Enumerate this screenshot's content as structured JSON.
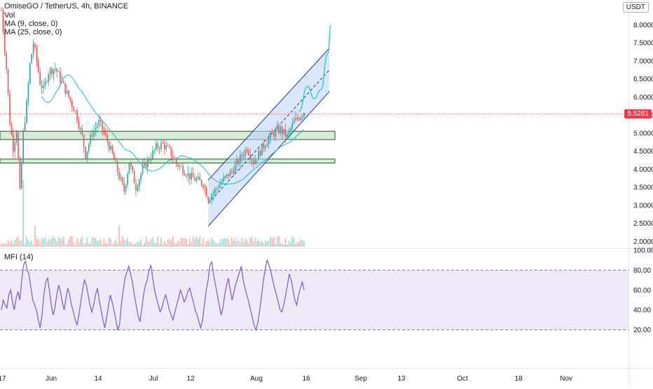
{
  "header": {
    "symbol_line": "OmiseGO / TetherUS, 4h, BINANCE",
    "vol_label": "Vol",
    "ma1_label": "MA (9, close, 0)",
    "ma2_label": "MA (25, close, 0)",
    "currency": "USDT"
  },
  "mfi_label": "MFI (14)",
  "last_price_label": "5.5261",
  "colors": {
    "up": "#26a69a",
    "down": "#ef5350",
    "ma": "#21b5c9",
    "channel_fill": "#bbd3f5",
    "channel_line": "#1e3a8a",
    "zone_fill": "#c8e6c9",
    "zone_line": "#1b5e20",
    "mfi_line": "#7e57c2",
    "mfi_band": "#ede7f6",
    "projection": "#21c7d9",
    "last_price": "#f23645"
  },
  "chart_data": [
    {
      "type": "candlestick",
      "price_axis": {
        "min": 1.85,
        "max": 8.3,
        "ticks": [
          "2.0000",
          "2.5000",
          "3.0000",
          "3.5000",
          "4.0000",
          "4.5000",
          "5.0000",
          "5.5000",
          "6.0000",
          "6.5000",
          "7.0000",
          "7.5000",
          "8.0000"
        ]
      },
      "time_axis_labels": [
        "17",
        "Jun",
        "14",
        "Jul",
        "12",
        "Aug",
        "16",
        "Sep",
        "13",
        "Oct",
        "18",
        "Nov"
      ],
      "last_price": 5.5261,
      "price_path": [
        [
          0,
          8.4
        ],
        [
          3,
          6.8
        ],
        [
          5,
          5.3
        ],
        [
          7,
          4.6
        ],
        [
          9,
          5.1
        ],
        [
          11,
          3.35
        ],
        [
          13,
          5.0
        ],
        [
          15,
          5.8
        ],
        [
          17,
          6.9
        ],
        [
          19,
          7.5
        ],
        [
          21,
          7.0
        ],
        [
          23,
          6.4
        ],
        [
          25,
          6.2
        ],
        [
          28,
          6.7
        ],
        [
          32,
          6.8
        ],
        [
          36,
          6.4
        ],
        [
          40,
          6.0
        ],
        [
          44,
          5.6
        ],
        [
          48,
          4.9
        ],
        [
          50,
          4.4
        ],
        [
          54,
          5.0
        ],
        [
          58,
          5.3
        ],
        [
          62,
          4.9
        ],
        [
          66,
          4.4
        ],
        [
          70,
          3.8
        ],
        [
          73,
          3.4
        ],
        [
          76,
          4.2
        ],
        [
          80,
          3.5
        ],
        [
          84,
          4.0
        ],
        [
          88,
          4.3
        ],
        [
          92,
          4.6
        ],
        [
          96,
          4.7
        ],
        [
          100,
          4.5
        ],
        [
          104,
          4.15
        ],
        [
          108,
          4.0
        ],
        [
          112,
          3.8
        ],
        [
          116,
          3.7
        ],
        [
          120,
          3.6
        ],
        [
          123,
          3.2
        ],
        [
          126,
          3.35
        ],
        [
          130,
          3.6
        ],
        [
          134,
          3.8
        ],
        [
          138,
          4.0
        ],
        [
          142,
          4.3
        ],
        [
          146,
          4.6
        ],
        [
          150,
          4.2
        ],
        [
          154,
          4.5
        ],
        [
          158,
          4.8
        ],
        [
          162,
          5.0
        ],
        [
          166,
          5.1
        ],
        [
          170,
          4.9
        ],
        [
          174,
          5.3
        ],
        [
          177,
          5.45
        ],
        [
          180,
          5.6
        ]
      ],
      "volume": {
        "spike_index": 13
      },
      "moving_average": {
        "periods": 25
      },
      "support_zones": [
        {
          "low": 4.82,
          "high": 5.05
        },
        {
          "low": 4.17,
          "high": 4.28
        }
      ],
      "channel": {
        "upper": {
          "from": [
            123,
            3.7
          ],
          "to": [
            195,
            7.35
          ]
        },
        "lower": {
          "from": [
            123,
            2.42
          ],
          "to": [
            195,
            6.15
          ]
        },
        "mid": {
          "from": [
            123,
            3.05
          ],
          "to": [
            195,
            6.75
          ]
        }
      },
      "projection": [
        [
          177,
          5.6
        ],
        [
          182,
          6.3
        ],
        [
          186,
          5.95
        ],
        [
          190,
          6.2
        ],
        [
          194,
          7.2
        ],
        [
          196,
          8.0
        ]
      ]
    },
    {
      "type": "line",
      "name": "MFI (14)",
      "y_axis": {
        "min": 0,
        "max": 100,
        "ticks": [
          "20.00",
          "40.00",
          "60.00",
          "80.00",
          "100.00"
        ]
      },
      "band": {
        "low": 20,
        "high": 80
      },
      "values": [
        40,
        50,
        45,
        42,
        55,
        60,
        48,
        40,
        52,
        58,
        50,
        70,
        85,
        89,
        80,
        75,
        62,
        50,
        45,
        40,
        30,
        22,
        35,
        55,
        68,
        72,
        60,
        45,
        35,
        42,
        55,
        65,
        58,
        48,
        40,
        52,
        62,
        55,
        45,
        38,
        30,
        25,
        35,
        48,
        60,
        70,
        65,
        55,
        45,
        38,
        45,
        55,
        62,
        50,
        40,
        30,
        22,
        32,
        44,
        55,
        48,
        40,
        30,
        20,
        25,
        45,
        60,
        72,
        78,
        84,
        76,
        68,
        55,
        45,
        35,
        28,
        40,
        55,
        65,
        70,
        80,
        85,
        72,
        60,
        52,
        45,
        38,
        42,
        50,
        55,
        48,
        40,
        35,
        30,
        38,
        45,
        52,
        60,
        55,
        48,
        52,
        58,
        62,
        55,
        48,
        40,
        35,
        28,
        22,
        30,
        45,
        60,
        70,
        85,
        88,
        75,
        65,
        55,
        45,
        35,
        42,
        55,
        65,
        72,
        60,
        50,
        58,
        66,
        72,
        78,
        84,
        70,
        62,
        55,
        48,
        40,
        32,
        24,
        20,
        28,
        40,
        55,
        70,
        82,
        90,
        85,
        78,
        70,
        62,
        55,
        48,
        40,
        38,
        45,
        55,
        65,
        76,
        70,
        60,
        50,
        45,
        55,
        62,
        68,
        60
      ]
    }
  ]
}
